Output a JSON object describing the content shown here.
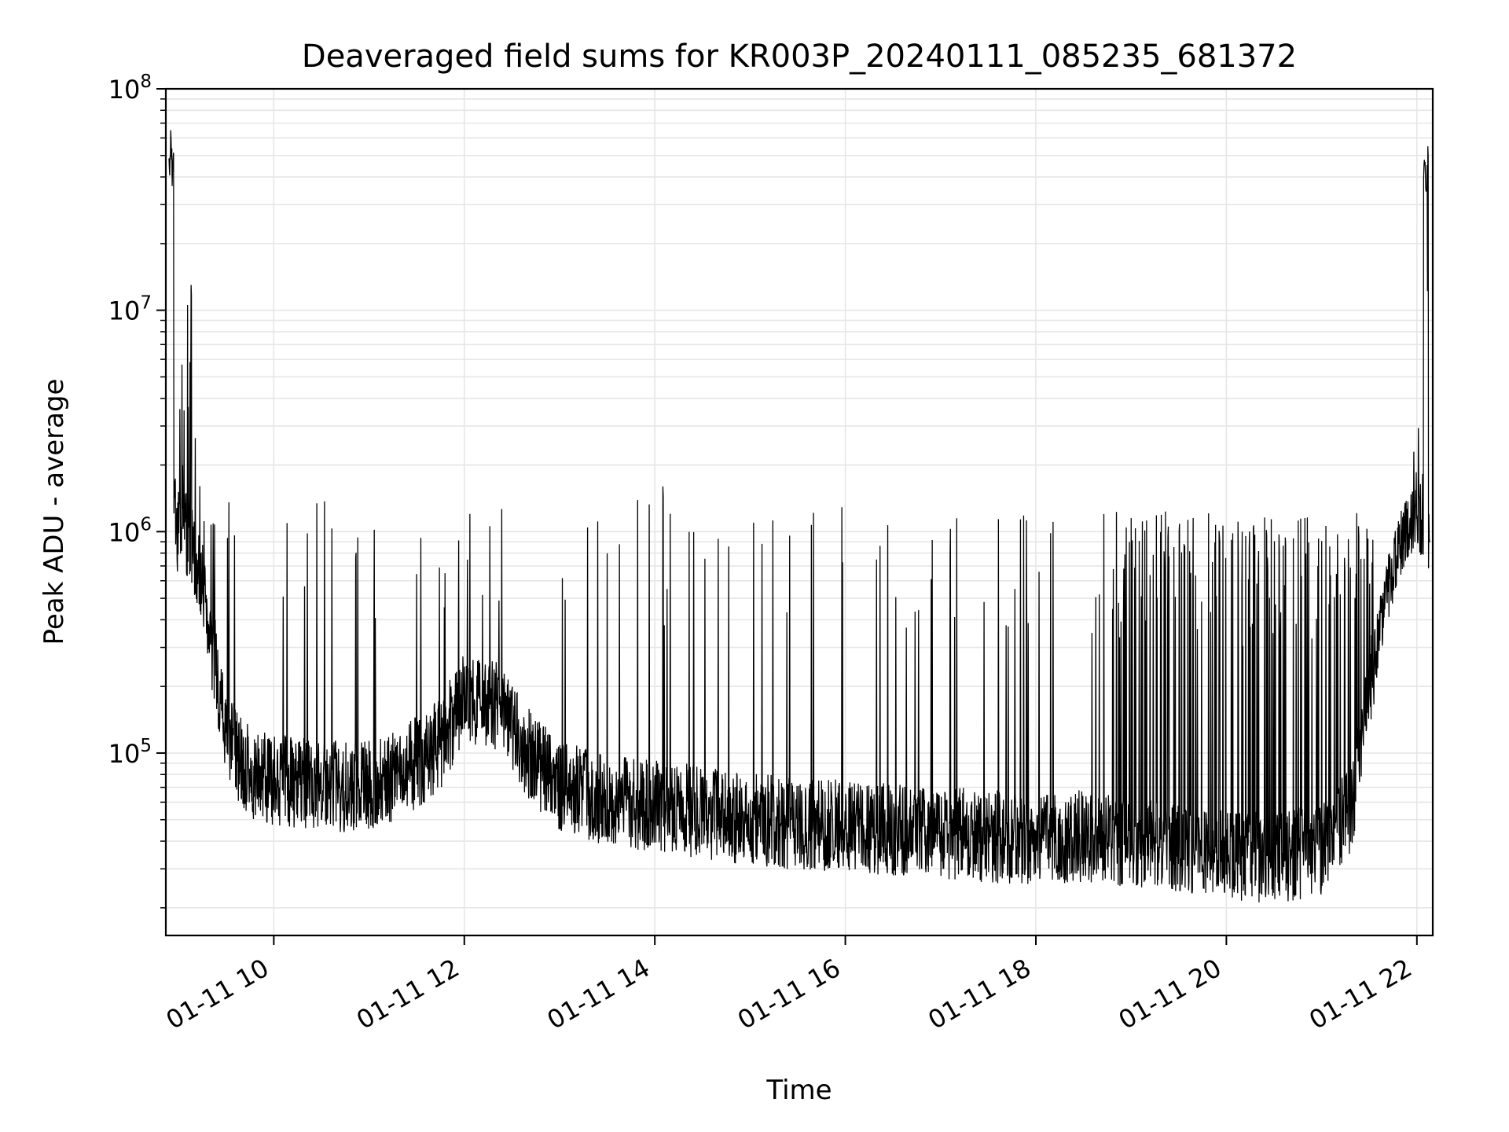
{
  "chart_data": {
    "type": "line",
    "title": "Deaveraged field sums for KR003P_20240111_085235_681372",
    "xlabel": "Time",
    "ylabel": "Peak ADU - average",
    "x_type": "time",
    "x_range": [
      "2024-01-11 08:52",
      "2024-01-11 22:10"
    ],
    "xtick_labels": [
      "01-11 10",
      "01-11 12",
      "01-11 14",
      "01-11 16",
      "01-11 18",
      "01-11 20",
      "01-11 22"
    ],
    "xtick_rotation_deg": 30,
    "y_scale": "log",
    "ylim": [
      15000,
      100000000
    ],
    "ytick_labels": [
      {
        "base": "10",
        "exp": "5"
      },
      {
        "base": "10",
        "exp": "6"
      },
      {
        "base": "10",
        "exp": "7"
      },
      {
        "base": "10",
        "exp": "8"
      }
    ],
    "grid": true,
    "line_color": "#000000",
    "grid_color": "#e6e6e6",
    "series": [
      {
        "x": [
          "08:54",
          "08:58",
          "09:05",
          "09:15",
          "09:30",
          "09:45",
          "10:00",
          "10:30",
          "11:00",
          "11:20",
          "11:45",
          "12:00",
          "12:20",
          "12:45",
          "13:00",
          "13:30",
          "14:00",
          "14:30",
          "15:00",
          "15:30",
          "16:00",
          "16:30",
          "17:00",
          "17:30",
          "18:00",
          "18:30",
          "19:00",
          "19:30",
          "20:00",
          "20:30",
          "21:00",
          "21:20",
          "21:30",
          "21:40",
          "21:50",
          "22:00",
          "22:08"
        ],
        "baseline": [
          1300000,
          1100000,
          950000,
          600000,
          120000,
          80000,
          75000,
          72000,
          70000,
          80000,
          110000,
          180000,
          160000,
          90000,
          70000,
          62000,
          58000,
          54000,
          50000,
          48000,
          47000,
          45000,
          44000,
          42000,
          41000,
          42000,
          40000,
          38000,
          35000,
          34000,
          36000,
          60000,
          200000,
          500000,
          900000,
          1200000,
          1100000
        ],
        "peak_ceiling": [
          65000000,
          2500000,
          13000000,
          1300000,
          1400000,
          1400000,
          1400000,
          1400000,
          1350000,
          1300000,
          1250000,
          1400000,
          1450000,
          1300000,
          700000,
          1400000,
          1400000,
          1400000,
          1300000,
          1300000,
          1300000,
          1300000,
          1250000,
          1200000,
          1200000,
          1250000,
          1250000,
          1250000,
          1200000,
          1200000,
          1150000,
          1200000,
          1300000,
          1600000,
          2500000,
          3000000,
          55000000
        ],
        "notable_peaks": [
          {
            "x": "08:55",
            "y": 65000000
          },
          {
            "x": "09:08",
            "y": 13000000
          },
          {
            "x": "14:05",
            "y": 1600000
          },
          {
            "x": "22:07",
            "y": 55000000
          }
        ]
      }
    ]
  }
}
